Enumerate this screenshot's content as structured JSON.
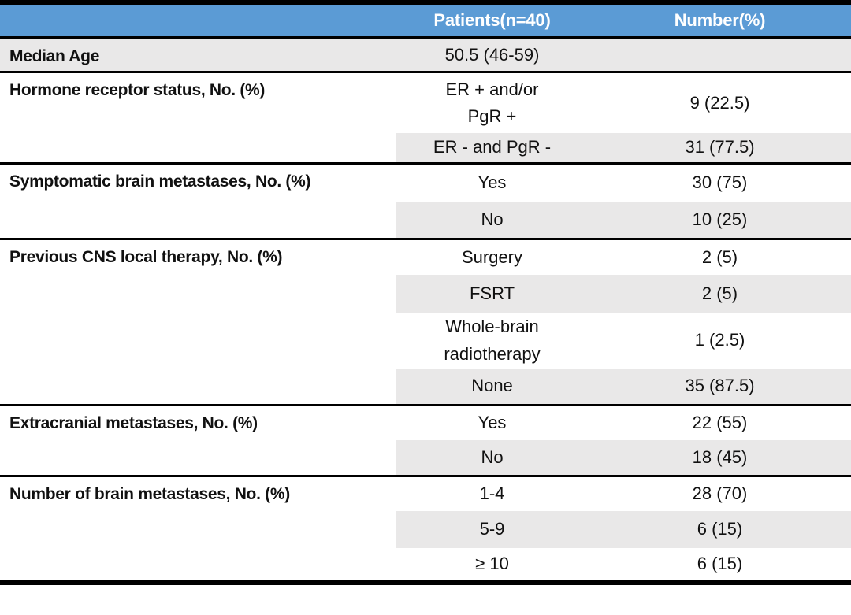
{
  "colors": {
    "header_bg": "#5B9BD5",
    "header_text": "#FFFFFF",
    "stripe": "#E9E8E8",
    "line": "#000000",
    "text": "#111111"
  },
  "chart_data": {
    "type": "table",
    "columns": [
      "",
      "Patients(n=40)",
      "Number(%)"
    ],
    "sections": [
      {
        "label": "Median Age",
        "rows": [
          {
            "value": "50.5 (46-59)",
            "number": ""
          }
        ]
      },
      {
        "label": "Hormone receptor status, No. (%)",
        "rows": [
          {
            "value": "ER + and/or\nPgR +",
            "number": "9 (22.5)"
          },
          {
            "value": "ER - and PgR -",
            "number": "31 (77.5)"
          }
        ]
      },
      {
        "label": "Symptomatic brain metastases, No. (%)",
        "rows": [
          {
            "value": "Yes",
            "number": "30 (75)"
          },
          {
            "value": "No",
            "number": "10 (25)"
          }
        ]
      },
      {
        "label": "Previous CNS local therapy, No. (%)",
        "rows": [
          {
            "value": "Surgery",
            "number": "2 (5)"
          },
          {
            "value": "FSRT",
            "number": "2 (5)"
          },
          {
            "value": "Whole-brain\nradiotherapy",
            "number": "1 (2.5)"
          },
          {
            "value": "None",
            "number": "35 (87.5)"
          }
        ]
      },
      {
        "label": "Extracranial metastases, No. (%)",
        "rows": [
          {
            "value": "Yes",
            "number": "22 (55)"
          },
          {
            "value": "No",
            "number": "18 (45)"
          }
        ]
      },
      {
        "label": "Number of brain metastases, No. (%)",
        "rows": [
          {
            "value": "1-4",
            "number": "28 (70)"
          },
          {
            "value": "5-9",
            "number": "6 (15)"
          },
          {
            "value": "≥ 10",
            "number": "6 (15)"
          }
        ]
      }
    ]
  }
}
